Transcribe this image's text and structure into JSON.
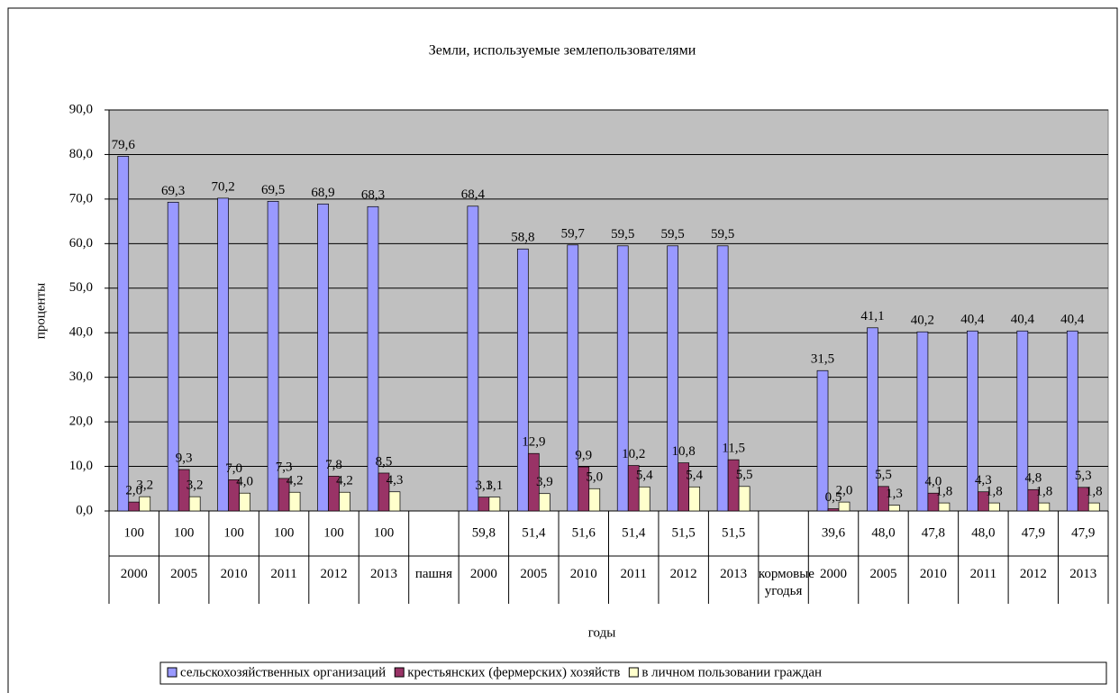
{
  "chart_data": {
    "type": "bar",
    "title": "Земли, используемые землепользователями",
    "y_label": "проценты",
    "x_label": "годы",
    "categories": [
      "100",
      "100",
      "100",
      "100",
      "100",
      "100",
      null,
      "59,8",
      "51,4",
      "51,6",
      "51,4",
      "51,5",
      "51,5",
      null,
      "39,6",
      "48,0",
      "47,8",
      "48,0",
      "47,9",
      "47,9"
    ],
    "category_years": [
      "2000",
      "2005",
      "2010",
      "2011",
      "2012",
      "2013",
      "пашня",
      "2000",
      "2005",
      "2010",
      "2011",
      "2012",
      "2013",
      "кормовые угодья",
      "2000",
      "2005",
      "2010",
      "2011",
      "2012",
      "2013"
    ],
    "series": [
      {
        "name": "сельскохозяйственных организаций",
        "color": "#9999ff",
        "values": [
          79.6,
          69.3,
          70.2,
          69.5,
          68.9,
          68.3,
          null,
          68.4,
          58.8,
          59.7,
          59.5,
          59.5,
          59.5,
          null,
          31.5,
          41.1,
          40.2,
          40.4,
          40.4,
          40.4
        ],
        "value_labels": [
          "79,6",
          "69,3",
          "70,2",
          "69,5",
          "68,9",
          "68,3",
          null,
          "68,4",
          "58,8",
          "59,7",
          "59,5",
          "59,5",
          "59,5",
          null,
          "31,5",
          "41,1",
          "40,2",
          "40,4",
          "40,4",
          "40,4"
        ]
      },
      {
        "name": "крестьянских (фермерских) хозяйств",
        "color": "#993366",
        "values": [
          2.0,
          9.3,
          7.0,
          7.3,
          7.8,
          8.5,
          null,
          3.1,
          12.9,
          9.9,
          10.2,
          10.8,
          11.5,
          null,
          0.5,
          5.5,
          4.0,
          4.3,
          4.8,
          5.3
        ],
        "value_labels": [
          "2,0",
          "9,3",
          "7,0",
          "7,3",
          "7,8",
          "8,5",
          null,
          "3,1",
          "12,9",
          "9,9",
          "10,2",
          "10,8",
          "11,5",
          null,
          "0,5",
          "5,5",
          "4,0",
          "4,3",
          "4,8",
          "5,3"
        ]
      },
      {
        "name": "в личном пользовании граждан",
        "color": "#ffffcc",
        "values": [
          3.2,
          3.2,
          4.0,
          4.2,
          4.2,
          4.3,
          null,
          3.1,
          3.9,
          5.0,
          5.4,
          5.4,
          5.5,
          null,
          2.0,
          1.3,
          1.8,
          1.8,
          1.8,
          1.8
        ],
        "value_labels": [
          "3,2",
          "3,2",
          "4,0",
          "4,2",
          "4,2",
          "4,3",
          null,
          "3,1",
          "3,9",
          "5,0",
          "5,4",
          "5,4",
          "5,5",
          null,
          "2,0",
          "1,3",
          "1,8",
          "1,8",
          "1,8",
          "1,8"
        ]
      }
    ],
    "ylim": [
      0,
      90
    ],
    "yticks": [
      {
        "value": 0,
        "label": "0,0"
      },
      {
        "value": 10,
        "label": "10,0"
      },
      {
        "value": 20,
        "label": "20,0"
      },
      {
        "value": 30,
        "label": "30,0"
      },
      {
        "value": 40,
        "label": "40,0"
      },
      {
        "value": 50,
        "label": "50,0"
      },
      {
        "value": 60,
        "label": "60,0"
      },
      {
        "value": 70,
        "label": "70,0"
      },
      {
        "value": 80,
        "label": "80,0"
      },
      {
        "value": 90,
        "label": "90,0"
      }
    ],
    "grid": true,
    "plot_background": "#c0c0c0",
    "legend": "bottom"
  }
}
